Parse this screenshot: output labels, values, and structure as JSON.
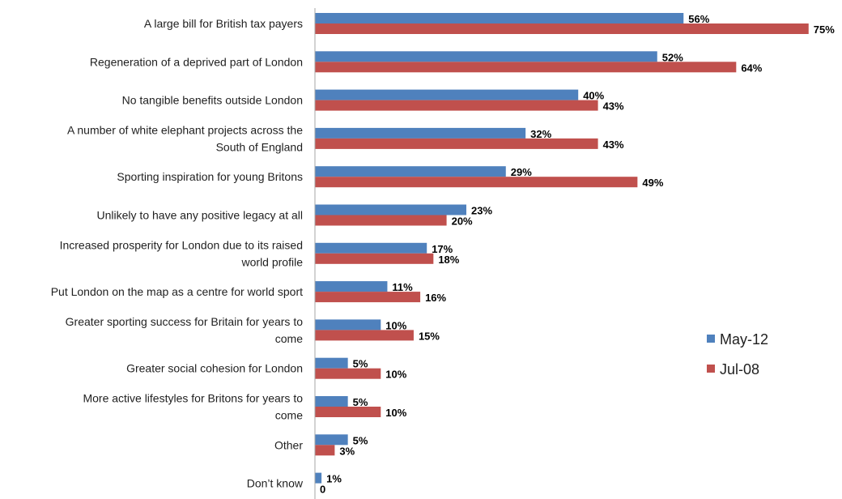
{
  "colors": {
    "may12": "#4f81bd",
    "jul08": "#c0504d",
    "axis": "#a6a6a6"
  },
  "chart_data": {
    "type": "bar",
    "orientation": "horizontal",
    "categories": [
      "A large bill for British tax payers",
      "Regeneration of a deprived part of London",
      "No tangible benefits outside London",
      "A number of white elephant projects across the South of England",
      "Sporting inspiration for young Britons",
      "Unlikely to have any positive legacy at all",
      "Increased prosperity for London due to its raised world profile",
      "Put London on the map as a centre for world sport",
      "Greater sporting success for Britain for years to come",
      "Greater social cohesion for London",
      "More active lifestyles for Britons for years to come",
      "Other",
      "Don’t know"
    ],
    "series": [
      {
        "name": "May-12",
        "values": [
          56,
          52,
          40,
          32,
          29,
          23,
          17,
          11,
          10,
          5,
          5,
          5,
          1
        ],
        "labels": [
          "56%",
          "52%",
          "40%",
          "32%",
          "29%",
          "23%",
          "17%",
          "11%",
          "10%",
          "5%",
          "5%",
          "5%",
          "1%"
        ]
      },
      {
        "name": "Jul-08",
        "values": [
          75,
          64,
          43,
          43,
          49,
          20,
          18,
          16,
          15,
          10,
          10,
          3,
          0
        ],
        "labels": [
          "75%",
          "64%",
          "43%",
          "43%",
          "49%",
          "20%",
          "18%",
          "16%",
          "15%",
          "10%",
          "10%",
          "3%",
          "0"
        ]
      }
    ],
    "xlim": [
      0,
      80
    ],
    "grid": false,
    "legend_position": "right",
    "xlabel": "",
    "ylabel": ""
  }
}
